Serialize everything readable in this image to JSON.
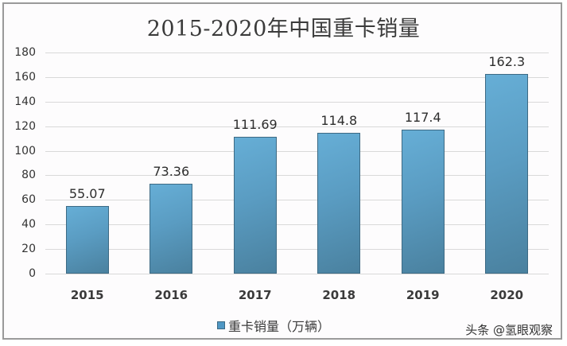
{
  "chart_data": {
    "type": "bar",
    "title": "2015-2020年中国重卡销量",
    "categories": [
      "2015",
      "2016",
      "2017",
      "2018",
      "2019",
      "2020"
    ],
    "series": [
      {
        "name": "重卡销量（万辆）",
        "values": [
          55.07,
          73.36,
          111.69,
          114.8,
          117.4,
          162.3
        ]
      }
    ],
    "value_labels": [
      "55.07",
      "73.36",
      "111.69",
      "114.8",
      "117.4",
      "162.3"
    ],
    "xlabel": "",
    "ylabel": "",
    "ylim": [
      0,
      180
    ],
    "yticks": [
      "0",
      "20",
      "40",
      "60",
      "80",
      "100",
      "120",
      "140",
      "160",
      "180"
    ],
    "grid": true,
    "legend_position": "bottom",
    "bar_color": "#5a9cc2"
  },
  "watermark": "头条 @氢眼观察"
}
